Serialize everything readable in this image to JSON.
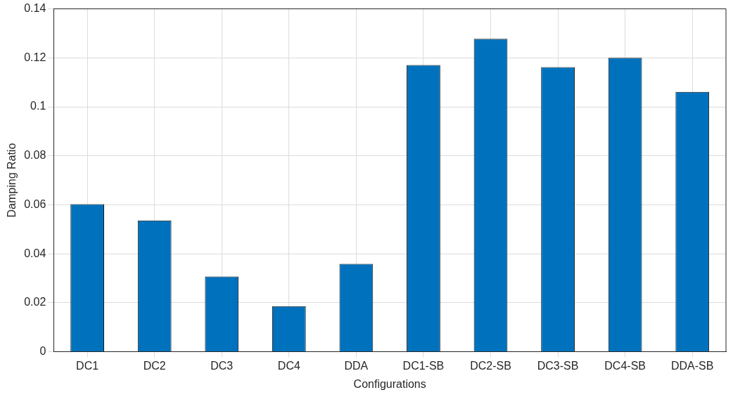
{
  "chart_data": {
    "type": "bar",
    "xlabel": "Configurations",
    "ylabel": "Damping Ratio",
    "categories": [
      "DC1",
      "DC2",
      "DC3",
      "DC4",
      "DDA",
      "DC1-SB",
      "DC2-SB",
      "DC3-SB",
      "DC4-SB",
      "DDA-SB"
    ],
    "values": [
      0.0603,
      0.0536,
      0.0307,
      0.0186,
      0.0359,
      0.1171,
      0.1278,
      0.1162,
      0.12,
      0.1061
    ],
    "color": "#0072bd",
    "ylim": [
      0,
      0.14
    ],
    "yticks": [
      0,
      0.02,
      0.04,
      0.06,
      0.08,
      0.1,
      0.12,
      0.14
    ],
    "grid": true,
    "legend": false
  }
}
